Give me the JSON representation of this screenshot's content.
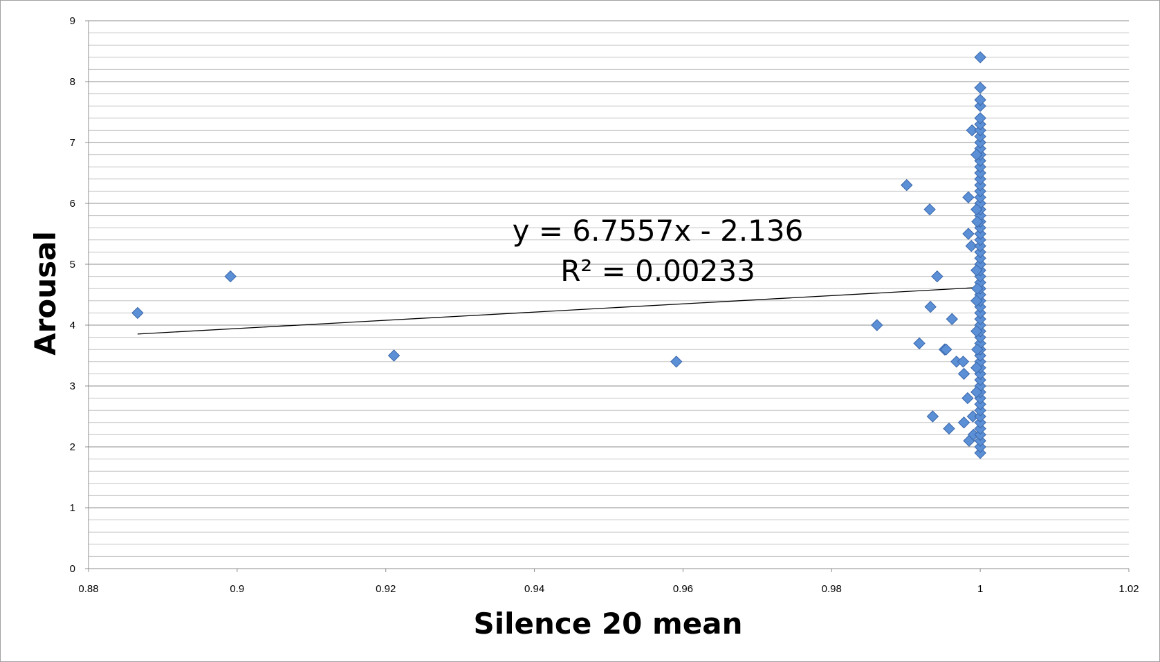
{
  "chart_data": {
    "type": "scatter",
    "title": "",
    "xlabel": "Silence 20 mean",
    "ylabel": "Arousal",
    "xlim": [
      0.88,
      1.02
    ],
    "ylim": [
      0,
      9
    ],
    "x_ticks": [
      "0.88",
      "0.9",
      "0.92",
      "0.94",
      "0.96",
      "0.98",
      "1",
      "1.02"
    ],
    "y_ticks": [
      "0",
      "1",
      "2",
      "3",
      "4",
      "5",
      "6",
      "7",
      "8",
      "9"
    ],
    "grid": {
      "major_y": true,
      "minor_y": true,
      "x": false
    },
    "legend": "none",
    "marker": {
      "shape": "diamond",
      "color": "#5B8FD6"
    },
    "trendline": {
      "type": "linear",
      "slope": 6.7557,
      "intercept": -2.136,
      "x_range": [
        0.8866,
        1.0
      ],
      "color": "#000000",
      "equation_label": "y = 6.7557x - 2.136",
      "r2_label": "R² = 0.00233"
    },
    "series": [
      {
        "points": [
          [
            0.8866,
            4.2
          ],
          [
            0.8991,
            4.8
          ],
          [
            0.9211,
            3.5
          ],
          [
            0.9591,
            3.4
          ],
          [
            0.9861,
            4.0
          ],
          [
            0.9901,
            6.3
          ],
          [
            0.9918,
            3.7
          ],
          [
            0.9932,
            5.9
          ],
          [
            0.9933,
            4.3
          ],
          [
            0.9936,
            2.5
          ],
          [
            0.9942,
            4.8
          ],
          [
            0.9952,
            3.6
          ],
          [
            0.9954,
            3.6
          ],
          [
            0.9958,
            2.3
          ],
          [
            0.9962,
            4.1
          ],
          [
            0.9968,
            3.4
          ],
          [
            0.9977,
            3.4
          ],
          [
            0.9978,
            3.2
          ],
          [
            0.9978,
            2.4
          ],
          [
            0.9983,
            2.8
          ],
          [
            0.9984,
            6.1
          ],
          [
            0.9984,
            5.5
          ],
          [
            0.9985,
            2.1
          ],
          [
            0.9988,
            5.3
          ],
          [
            0.9989,
            7.2
          ],
          [
            0.999,
            2.5
          ],
          [
            0.9991,
            2.2
          ],
          [
            1.0,
            1.9
          ],
          [
            1.0,
            2.0
          ],
          [
            1.0,
            2.1
          ],
          [
            1.0,
            2.2
          ],
          [
            1.0,
            2.3
          ],
          [
            1.0,
            2.4
          ],
          [
            1.0,
            2.5
          ],
          [
            1.0,
            2.6
          ],
          [
            1.0,
            2.7
          ],
          [
            1.0,
            2.8
          ],
          [
            1.0,
            2.9
          ],
          [
            1.0,
            3.0
          ],
          [
            1.0,
            3.1
          ],
          [
            1.0,
            3.2
          ],
          [
            1.0,
            3.3
          ],
          [
            1.0,
            3.4
          ],
          [
            1.0,
            3.5
          ],
          [
            1.0,
            3.6
          ],
          [
            1.0,
            3.7
          ],
          [
            1.0,
            3.8
          ],
          [
            1.0,
            3.9
          ],
          [
            1.0,
            4.0
          ],
          [
            1.0,
            4.1
          ],
          [
            1.0,
            4.2
          ],
          [
            1.0,
            4.3
          ],
          [
            1.0,
            4.4
          ],
          [
            1.0,
            4.5
          ],
          [
            1.0,
            4.6
          ],
          [
            1.0,
            4.7
          ],
          [
            1.0,
            4.8
          ],
          [
            1.0,
            4.9
          ],
          [
            1.0,
            5.0
          ],
          [
            1.0,
            5.1
          ],
          [
            1.0,
            5.2
          ],
          [
            1.0,
            5.3
          ],
          [
            1.0,
            5.4
          ],
          [
            1.0,
            5.5
          ],
          [
            1.0,
            5.6
          ],
          [
            1.0,
            5.7
          ],
          [
            1.0,
            5.8
          ],
          [
            1.0,
            5.9
          ],
          [
            1.0,
            6.0
          ],
          [
            1.0,
            6.1
          ],
          [
            1.0,
            6.2
          ],
          [
            1.0,
            6.3
          ],
          [
            1.0,
            6.4
          ],
          [
            1.0,
            6.5
          ],
          [
            1.0,
            6.6
          ],
          [
            1.0,
            6.7
          ],
          [
            1.0,
            6.8
          ],
          [
            1.0,
            6.9
          ],
          [
            1.0,
            7.0
          ],
          [
            1.0,
            7.1
          ],
          [
            1.0,
            7.2
          ],
          [
            1.0,
            7.3
          ],
          [
            1.0,
            7.4
          ],
          [
            1.0,
            7.6
          ],
          [
            1.0,
            7.7
          ],
          [
            1.0,
            7.9
          ],
          [
            1.0,
            8.4
          ],
          [
            0.9995,
            5.9
          ],
          [
            0.9995,
            4.9
          ],
          [
            0.9995,
            4.4
          ],
          [
            0.9995,
            3.9
          ],
          [
            0.9995,
            3.3
          ],
          [
            0.9995,
            2.9
          ],
          [
            0.9995,
            6.8
          ],
          [
            0.9996,
            5.7
          ],
          [
            0.9996,
            4.6
          ],
          [
            0.9996,
            3.6
          ]
        ]
      }
    ]
  }
}
